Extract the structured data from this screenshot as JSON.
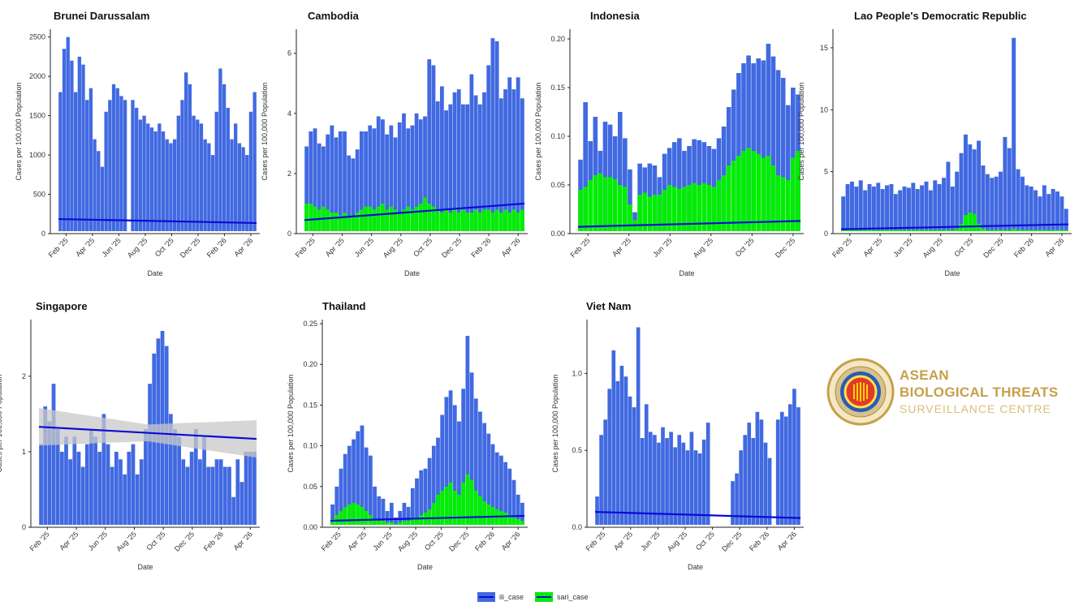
{
  "chart_data": [
    {
      "type": "bar",
      "title": "Brunei Darussalam",
      "xlabel": "Date",
      "ylabel": "Cases per 100,000 Population",
      "ylim": [
        0,
        2600
      ],
      "yticks": [
        0,
        500,
        1000,
        1500,
        2000,
        2500
      ],
      "xticks": [
        "Feb '25",
        "Apr '25",
        "Jun '25",
        "Aug '25",
        "Oct '25",
        "Dec '25",
        "Feb '26",
        "Apr '26"
      ],
      "series": [
        {
          "name": "ili_case",
          "color": "#4169e1",
          "values": [
            1800,
            2350,
            2500,
            2200,
            1800,
            2250,
            2150,
            1700,
            1850,
            1200,
            1050,
            850,
            1550,
            1700,
            1900,
            1850,
            1750,
            1700,
            0,
            1700,
            1600,
            1450,
            1500,
            1400,
            1350,
            1300,
            1400,
            1300,
            1200,
            1150,
            1200,
            1500,
            1700,
            2050,
            1900,
            1500,
            1450,
            1400,
            1200,
            1150,
            1000,
            1550,
            2100,
            1900,
            1600,
            1200,
            1400,
            1150,
            1100,
            1000,
            1550,
            1800
          ]
        },
        {
          "name": "sari_case",
          "color": "#00ee00",
          "values": [
            5,
            5,
            5,
            5,
            5,
            5,
            5,
            5,
            5,
            5,
            5,
            5,
            5,
            5,
            5,
            5,
            5,
            5,
            0,
            5,
            5,
            5,
            5,
            5,
            5,
            5,
            5,
            5,
            5,
            5,
            5,
            5,
            5,
            5,
            5,
            5,
            5,
            5,
            5,
            5,
            5,
            5,
            5,
            5,
            5,
            5,
            5,
            5,
            5,
            5,
            5,
            5
          ]
        }
      ],
      "trend": [
        185,
        135
      ],
      "trend_band": false
    },
    {
      "type": "bar",
      "title": "Cambodia",
      "xlabel": "Date",
      "ylabel": "Cases per 100,000 Population",
      "ylim": [
        0,
        6.8
      ],
      "yticks": [
        0,
        2,
        4,
        6
      ],
      "xticks": [
        "Feb '25",
        "Apr '25",
        "Jun '25",
        "Aug '25",
        "Oct '25",
        "Dec '25",
        "Feb '26",
        "Apr '26"
      ],
      "series": [
        {
          "name": "ili_case",
          "color": "#4169e1",
          "values": [
            2.9,
            3.4,
            3.5,
            3.0,
            2.9,
            3.3,
            3.6,
            3.2,
            3.4,
            3.4,
            2.6,
            2.5,
            2.8,
            3.4,
            3.4,
            3.6,
            3.5,
            3.9,
            3.8,
            3.3,
            3.6,
            3.2,
            3.7,
            4.0,
            3.5,
            3.6,
            4.0,
            3.8,
            3.9,
            5.8,
            5.6,
            4.4,
            4.9,
            4.1,
            4.3,
            4.7,
            4.8,
            4.3,
            4.3,
            5.3,
            4.6,
            4.3,
            4.7,
            5.6,
            6.5,
            6.4,
            4.5,
            4.8,
            5.2,
            4.8,
            5.2,
            4.5
          ]
        },
        {
          "name": "sari_case",
          "color": "#00ee00",
          "values": [
            1.0,
            1.0,
            0.9,
            0.8,
            0.9,
            0.8,
            0.7,
            0.7,
            0.6,
            0.7,
            0.6,
            0.6,
            0.7,
            0.8,
            0.9,
            0.9,
            0.8,
            0.9,
            1.0,
            0.8,
            0.9,
            0.8,
            0.7,
            0.8,
            0.9,
            0.8,
            0.9,
            1.0,
            1.2,
            1.0,
            0.9,
            0.8,
            0.7,
            0.8,
            0.7,
            0.8,
            0.7,
            0.8,
            0.7,
            0.7,
            0.8,
            0.7,
            0.8,
            0.8,
            0.7,
            0.8,
            0.7,
            0.8,
            0.7,
            0.8,
            0.7,
            0.8
          ]
        }
      ],
      "trend": [
        0.45,
        1.0
      ],
      "trend_band": false
    },
    {
      "type": "bar",
      "title": "Indonesia",
      "xlabel": "Date",
      "ylabel": "Cases per 100,000 Population",
      "ylim": [
        0,
        0.21
      ],
      "yticks": [
        0.0,
        0.05,
        0.1,
        0.15,
        0.2
      ],
      "xticks": [
        "Feb '25",
        "Apr '25",
        "Jun '25",
        "Aug '25",
        "Oct '25",
        "Dec '25"
      ],
      "series": [
        {
          "name": "ili_case",
          "color": "#4169e1",
          "values": [
            0.076,
            0.135,
            0.095,
            0.12,
            0.085,
            0.115,
            0.112,
            0.1,
            0.125,
            0.098,
            0.066,
            0.022,
            0.072,
            0.068,
            0.072,
            0.07,
            0.058,
            0.082,
            0.088,
            0.094,
            0.098,
            0.085,
            0.09,
            0.097,
            0.096,
            0.094,
            0.09,
            0.087,
            0.098,
            0.11,
            0.13,
            0.148,
            0.165,
            0.175,
            0.183,
            0.175,
            0.18,
            0.178,
            0.195,
            0.182,
            0.168,
            0.16,
            0.132,
            0.15,
            0.143
          ]
        },
        {
          "name": "sari_case",
          "color": "#00ee00",
          "values": [
            0.045,
            0.048,
            0.055,
            0.06,
            0.062,
            0.058,
            0.058,
            0.056,
            0.05,
            0.048,
            0.03,
            0.014,
            0.04,
            0.042,
            0.038,
            0.04,
            0.04,
            0.045,
            0.05,
            0.048,
            0.046,
            0.048,
            0.05,
            0.052,
            0.05,
            0.052,
            0.05,
            0.048,
            0.055,
            0.06,
            0.07,
            0.075,
            0.08,
            0.085,
            0.088,
            0.085,
            0.082,
            0.078,
            0.08,
            0.07,
            0.06,
            0.058,
            0.055,
            0.078,
            0.085
          ]
        }
      ],
      "trend": [
        0.007,
        0.013
      ],
      "trend_band": false
    },
    {
      "type": "bar",
      "title": "Lao People's Democratic Republic",
      "xlabel": "Date",
      "ylabel": "Cases per 100,000 Population",
      "ylim": [
        0,
        16.5
      ],
      "yticks": [
        0,
        5,
        10,
        15
      ],
      "xticks": [
        "Feb '25",
        "Apr '25",
        "Jun '25",
        "Aug '25",
        "Oct '25",
        "Dec '25",
        "Feb '26",
        "Apr '26"
      ],
      "series": [
        {
          "name": "ili_case",
          "color": "#4169e1",
          "values": [
            3.0,
            4.0,
            4.2,
            3.8,
            4.3,
            3.5,
            4.0,
            3.8,
            4.1,
            3.6,
            3.9,
            4.0,
            3.2,
            3.5,
            3.8,
            3.7,
            4.1,
            3.6,
            3.9,
            4.2,
            3.5,
            4.3,
            4.0,
            4.5,
            5.8,
            3.8,
            5.0,
            6.5,
            8.0,
            7.2,
            6.8,
            7.5,
            5.5,
            4.8,
            4.5,
            4.6,
            5.0,
            7.8,
            6.9,
            15.8,
            5.2,
            4.6,
            3.9,
            3.8,
            3.5,
            3.0,
            3.9,
            3.2,
            3.6,
            3.4,
            3.0,
            2.0
          ]
        },
        {
          "name": "sari_case",
          "color": "#00ee00",
          "values": [
            0.3,
            0.3,
            0.3,
            0.3,
            0.3,
            0.3,
            0.3,
            0.3,
            0.3,
            0.3,
            0.3,
            0.3,
            0.3,
            0.3,
            0.3,
            0.3,
            0.3,
            0.3,
            0.3,
            0.3,
            0.3,
            0.3,
            0.3,
            0.3,
            0.3,
            0.3,
            0.4,
            0.8,
            1.5,
            1.7,
            1.6,
            0.8,
            0.4,
            0.3,
            0.3,
            0.3,
            0.3,
            0.3,
            0.3,
            0.4,
            0.3,
            0.3,
            0.3,
            0.3,
            0.3,
            0.3,
            0.3,
            0.3,
            0.3,
            0.3,
            0.3,
            0.3
          ]
        }
      ],
      "trend": [
        0.35,
        0.75
      ],
      "trend_band": false
    },
    {
      "type": "bar",
      "title": "Singapore",
      "xlabel": "Date",
      "ylabel": "Cases per 100,000 Population",
      "ylim": [
        0,
        2.75
      ],
      "yticks": [
        0,
        1,
        2
      ],
      "xticks": [
        "Feb '25",
        "Apr '25",
        "Jun '25",
        "Aug '25",
        "Oct '25",
        "Dec '25",
        "Feb '26",
        "Apr '26"
      ],
      "series": [
        {
          "name": "ili_case",
          "color": "#4169e1",
          "values": [
            1.1,
            1.6,
            1.4,
            1.9,
            1.3,
            1.0,
            1.2,
            0.9,
            1.2,
            1.0,
            0.8,
            1.1,
            1.3,
            1.2,
            1.0,
            1.5,
            1.1,
            0.8,
            1.0,
            0.9,
            0.7,
            1.0,
            1.1,
            0.7,
            0.9,
            1.3,
            1.9,
            2.3,
            2.5,
            2.6,
            2.4,
            1.5,
            1.3,
            1.2,
            0.9,
            0.8,
            1.0,
            1.3,
            0.9,
            1.2,
            0.8,
            0.8,
            0.9,
            0.9,
            0.8,
            0.8,
            0.4,
            0.9,
            0.6,
            1.0,
            1.0,
            1.0
          ]
        },
        {
          "name": "sari_case",
          "color": "#00ee00",
          "values": [
            0,
            0,
            0,
            0,
            0,
            0,
            0,
            0,
            0,
            0,
            0,
            0,
            0,
            0,
            0,
            0,
            0,
            0,
            0,
            0,
            0,
            0,
            0,
            0,
            0,
            0,
            0,
            0,
            0,
            0,
            0,
            0,
            0,
            0,
            0,
            0,
            0,
            0,
            0,
            0,
            0,
            0,
            0,
            0,
            0,
            0,
            0,
            0,
            0,
            0,
            0,
            0
          ]
        }
      ],
      "trend": [
        1.33,
        1.17
      ],
      "trend_band": true
    },
    {
      "type": "bar",
      "title": "Thailand",
      "xlabel": "Date",
      "ylabel": "Cases per 100,000 Population",
      "ylim": [
        0,
        0.255
      ],
      "yticks": [
        0.0,
        0.05,
        0.1,
        0.15,
        0.2,
        0.25
      ],
      "xticks": [
        "Feb '25",
        "Apr '25",
        "Jun '25",
        "Aug '25",
        "Oct '25",
        "Dec '25",
        "Feb '26",
        "Apr '26"
      ],
      "series": [
        {
          "name": "ili_case",
          "color": "#4169e1",
          "values": [
            0.028,
            0.05,
            0.072,
            0.09,
            0.1,
            0.108,
            0.118,
            0.125,
            0.098,
            0.088,
            0.05,
            0.038,
            0.035,
            0.02,
            0.03,
            0.012,
            0.02,
            0.03,
            0.025,
            0.048,
            0.06,
            0.07,
            0.072,
            0.085,
            0.1,
            0.11,
            0.138,
            0.16,
            0.168,
            0.15,
            0.13,
            0.17,
            0.235,
            0.19,
            0.158,
            0.142,
            0.128,
            0.115,
            0.102,
            0.092,
            0.088,
            0.08,
            0.072,
            0.058,
            0.04,
            0.03
          ]
        },
        {
          "name": "sari_case",
          "color": "#00ee00",
          "values": [
            0.01,
            0.015,
            0.02,
            0.025,
            0.028,
            0.03,
            0.028,
            0.025,
            0.02,
            0.015,
            0.01,
            0.008,
            0.008,
            0.006,
            0.006,
            0.004,
            0.006,
            0.008,
            0.008,
            0.01,
            0.012,
            0.015,
            0.018,
            0.022,
            0.03,
            0.04,
            0.045,
            0.05,
            0.055,
            0.045,
            0.04,
            0.055,
            0.065,
            0.058,
            0.045,
            0.038,
            0.032,
            0.028,
            0.025,
            0.022,
            0.02,
            0.018,
            0.015,
            0.012,
            0.01,
            0.008
          ]
        }
      ],
      "trend": [
        0.008,
        0.014
      ],
      "trend_band": false
    },
    {
      "type": "bar",
      "title": "Viet Nam",
      "xlabel": "Date",
      "ylabel": "Cases per 100,000 Population",
      "ylim": [
        0,
        1.35
      ],
      "yticks": [
        0.0,
        0.5,
        1.0
      ],
      "xticks": [
        "Feb '25",
        "Apr '25",
        "Jun '25",
        "Aug '25",
        "Oct '25",
        "Dec '25",
        "Feb '26",
        "Apr '26"
      ],
      "series": [
        {
          "name": "ili_case",
          "color": "#4169e1",
          "values": [
            0.2,
            0.6,
            0.7,
            0.9,
            1.15,
            0.95,
            1.05,
            0.98,
            0.85,
            0.78,
            1.3,
            0.58,
            0.8,
            0.62,
            0.6,
            0.55,
            0.65,
            0.58,
            0.62,
            0.52,
            0.6,
            0.55,
            0.5,
            0.62,
            0.5,
            0.48,
            0.57,
            0.68,
            0,
            0,
            0,
            0,
            0,
            0.3,
            0.35,
            0.5,
            0.6,
            0.68,
            0.58,
            0.75,
            0.7,
            0.55,
            0.45,
            0,
            0.7,
            0.75,
            0.72,
            0.8,
            0.9,
            0.78
          ]
        },
        {
          "name": "sari_case",
          "color": "#00ee00",
          "values": [
            0,
            0,
            0,
            0,
            0,
            0,
            0,
            0,
            0,
            0,
            0,
            0,
            0,
            0,
            0,
            0,
            0,
            0,
            0,
            0,
            0,
            0,
            0,
            0,
            0,
            0,
            0,
            0,
            0,
            0,
            0,
            0,
            0,
            0,
            0,
            0,
            0,
            0,
            0,
            0,
            0,
            0,
            0,
            0,
            0,
            0,
            0,
            0,
            0,
            0
          ]
        }
      ],
      "trend": [
        0.1,
        0.06
      ],
      "trend_band": false
    }
  ],
  "legend": {
    "items": [
      {
        "label": "ili_case",
        "color": "#4169e1"
      },
      {
        "label": "sari_case",
        "color": "#00ee00"
      }
    ]
  },
  "colors": {
    "ili_case": "#4169e1",
    "sari_case": "#00ee00",
    "trend_line": "#0a0ad8",
    "trend_band": "#c8c8c8"
  },
  "logo": {
    "line1": "ASEAN",
    "line2": "BIOLOGICAL THREATS",
    "line3": "SURVEILLANCE CENTRE",
    "icon": "asean-emblem-icon"
  }
}
